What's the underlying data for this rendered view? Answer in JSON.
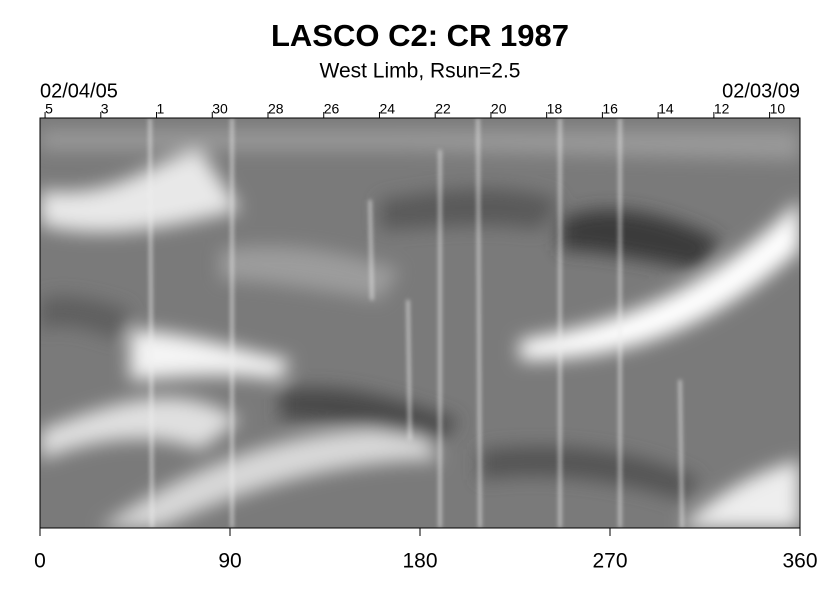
{
  "chart_data": {
    "type": "image",
    "title": "LASCO C2: CR 1987",
    "subtitle": "West Limb, Rsun=2.5",
    "annotations": [
      "02/04/05",
      "02/03/09"
    ],
    "xlim": [
      0,
      360
    ],
    "xticks": [
      0,
      90,
      180,
      270,
      360
    ],
    "x2lim": [
      0,
      360
    ],
    "x2ticks": [
      {
        "value": 2.4,
        "label": "5"
      },
      {
        "value": 28.8,
        "label": "3"
      },
      {
        "value": 55.2,
        "label": "1"
      },
      {
        "value": 81.6,
        "label": "30"
      },
      {
        "value": 108,
        "label": "28"
      },
      {
        "value": 134.4,
        "label": "26"
      },
      {
        "value": 160.8,
        "label": "24"
      },
      {
        "value": 187.2,
        "label": "22"
      },
      {
        "value": 213.6,
        "label": "20"
      },
      {
        "value": 240,
        "label": "18"
      },
      {
        "value": 266.4,
        "label": "16"
      },
      {
        "value": 292.8,
        "label": "14"
      },
      {
        "value": 319.2,
        "label": "12"
      },
      {
        "value": 345.6,
        "label": "10"
      }
    ]
  }
}
